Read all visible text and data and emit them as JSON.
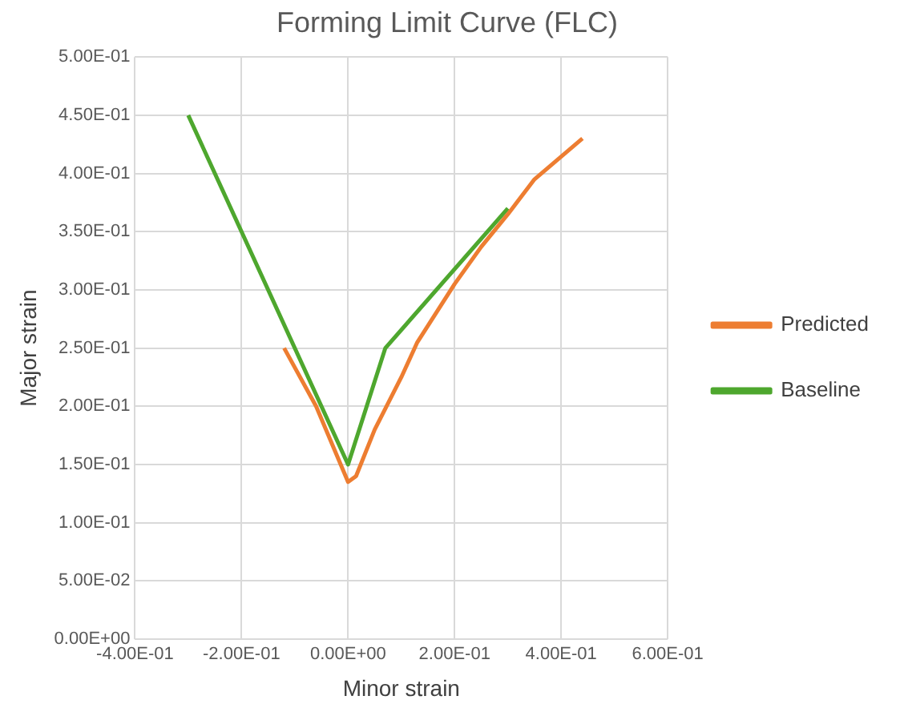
{
  "chart_data": {
    "type": "line",
    "title": "Forming Limit Curve (FLC)",
    "xlabel": "Minor strain",
    "ylabel": "Major strain",
    "series": [
      {
        "name": "Predicted",
        "color": "#ed7d31",
        "x": [
          -0.12,
          -0.06,
          0,
          0.015,
          0.05,
          0.1,
          0.13,
          0.2,
          0.25,
          0.3,
          0.35,
          0.44
        ],
        "values": [
          0.25,
          0.2,
          0.135,
          0.14,
          0.18,
          0.225,
          0.255,
          0.305,
          0.337,
          0.365,
          0.395,
          0.43
        ]
      },
      {
        "name": "Baseline",
        "color": "#4ea72e",
        "x": [
          -0.3,
          0,
          0.07,
          0.3
        ],
        "values": [
          0.45,
          0.15,
          0.25,
          0.37
        ]
      }
    ],
    "xlim": [
      -0.4,
      0.6
    ],
    "xticks": [
      {
        "value": -0.4,
        "label": "-4.00E-01"
      },
      {
        "value": -0.2,
        "label": "-2.00E-01"
      },
      {
        "value": 0,
        "label": "0.00E+00"
      },
      {
        "value": 0.2,
        "label": "2.00E-01"
      },
      {
        "value": 0.4,
        "label": "4.00E-01"
      },
      {
        "value": 0.6,
        "label": "6.00E-01"
      }
    ],
    "ylim": [
      0,
      0.5
    ],
    "yticks": [
      {
        "value": 0,
        "label": "0.00E+00"
      },
      {
        "value": 0.05,
        "label": "5.00E-02"
      },
      {
        "value": 0.1,
        "label": "1.00E-01"
      },
      {
        "value": 0.15,
        "label": "1.50E-01"
      },
      {
        "value": 0.2,
        "label": "2.00E-01"
      },
      {
        "value": 0.25,
        "label": "2.50E-01"
      },
      {
        "value": 0.3,
        "label": "3.00E-01"
      },
      {
        "value": 0.35,
        "label": "3.50E-01"
      },
      {
        "value": 0.4,
        "label": "4.00E-01"
      },
      {
        "value": 0.45,
        "label": "4.50E-01"
      },
      {
        "value": 0.5,
        "label": "5.00E-01"
      }
    ],
    "grid": true,
    "legend": "right",
    "marker": "none",
    "line_style": "solid"
  }
}
